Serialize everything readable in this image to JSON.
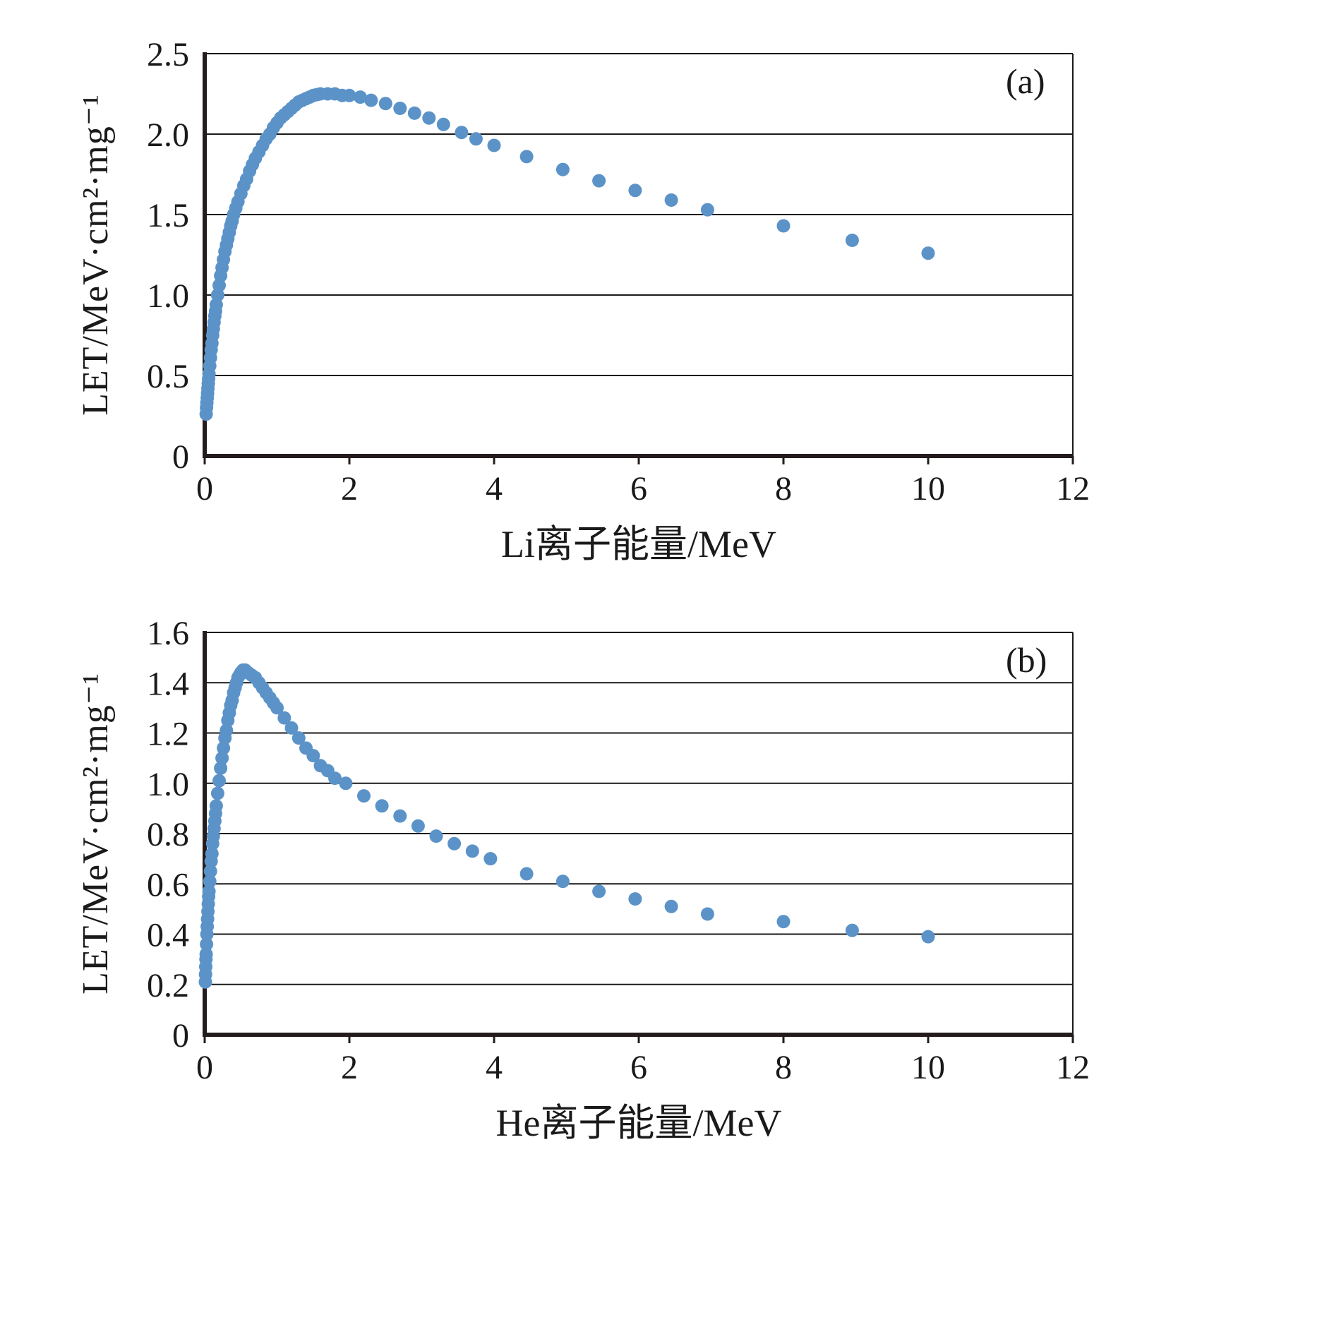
{
  "chart_data": [
    {
      "type": "scatter",
      "panel_label": "(a)",
      "xlabel": "Li离子能量/MeV",
      "ylabel": "LET/MeV·cm²·mg⁻¹",
      "xlim": [
        0,
        12
      ],
      "ylim": [
        0,
        2.5
      ],
      "xticks": [
        0,
        2,
        4,
        6,
        8,
        10,
        12
      ],
      "xtick_labels": [
        "0",
        "2",
        "4",
        "6",
        "8",
        "10",
        "12"
      ],
      "yticks": [
        0,
        0.5,
        1.0,
        1.5,
        2.0,
        2.5
      ],
      "ytick_labels": [
        "0",
        "0.5",
        "1.0",
        "1.5",
        "2.0",
        "2.5"
      ],
      "grid": "horizontal",
      "legend": "none",
      "point_color": "#5b93c8",
      "points": [
        [
          0.02,
          0.26
        ],
        [
          0.025,
          0.3
        ],
        [
          0.03,
          0.33
        ],
        [
          0.035,
          0.36
        ],
        [
          0.04,
          0.39
        ],
        [
          0.045,
          0.42
        ],
        [
          0.05,
          0.45
        ],
        [
          0.055,
          0.48
        ],
        [
          0.06,
          0.51
        ],
        [
          0.07,
          0.56
        ],
        [
          0.08,
          0.61
        ],
        [
          0.09,
          0.66
        ],
        [
          0.1,
          0.7
        ],
        [
          0.11,
          0.75
        ],
        [
          0.12,
          0.79
        ],
        [
          0.13,
          0.83
        ],
        [
          0.14,
          0.87
        ],
        [
          0.15,
          0.9
        ],
        [
          0.16,
          0.94
        ],
        [
          0.18,
          1.0
        ],
        [
          0.2,
          1.06
        ],
        [
          0.22,
          1.12
        ],
        [
          0.24,
          1.17
        ],
        [
          0.26,
          1.22
        ],
        [
          0.28,
          1.27
        ],
        [
          0.3,
          1.31
        ],
        [
          0.32,
          1.35
        ],
        [
          0.34,
          1.39
        ],
        [
          0.36,
          1.43
        ],
        [
          0.38,
          1.46
        ],
        [
          0.4,
          1.5
        ],
        [
          0.43,
          1.54
        ],
        [
          0.46,
          1.58
        ],
        [
          0.5,
          1.63
        ],
        [
          0.54,
          1.68
        ],
        [
          0.58,
          1.72
        ],
        [
          0.62,
          1.77
        ],
        [
          0.66,
          1.81
        ],
        [
          0.7,
          1.85
        ],
        [
          0.75,
          1.89
        ],
        [
          0.8,
          1.93
        ],
        [
          0.85,
          1.97
        ],
        [
          0.9,
          2.0
        ],
        [
          0.95,
          2.04
        ],
        [
          1.0,
          2.07
        ],
        [
          1.05,
          2.1
        ],
        [
          1.1,
          2.12
        ],
        [
          1.15,
          2.14
        ],
        [
          1.2,
          2.16
        ],
        [
          1.25,
          2.18
        ],
        [
          1.3,
          2.2
        ],
        [
          1.35,
          2.21
        ],
        [
          1.4,
          2.22
        ],
        [
          1.45,
          2.23
        ],
        [
          1.5,
          2.24
        ],
        [
          1.55,
          2.245
        ],
        [
          1.6,
          2.25
        ],
        [
          1.7,
          2.25
        ],
        [
          1.8,
          2.25
        ],
        [
          1.9,
          2.24
        ],
        [
          2.0,
          2.24
        ],
        [
          2.15,
          2.23
        ],
        [
          2.3,
          2.21
        ],
        [
          2.5,
          2.19
        ],
        [
          2.7,
          2.16
        ],
        [
          2.9,
          2.13
        ],
        [
          3.1,
          2.1
        ],
        [
          3.3,
          2.06
        ],
        [
          3.55,
          2.01
        ],
        [
          3.75,
          1.97
        ],
        [
          4.0,
          1.93
        ],
        [
          4.45,
          1.86
        ],
        [
          4.95,
          1.78
        ],
        [
          5.45,
          1.71
        ],
        [
          5.95,
          1.65
        ],
        [
          6.45,
          1.59
        ],
        [
          6.95,
          1.53
        ],
        [
          8.0,
          1.43
        ],
        [
          8.95,
          1.34
        ],
        [
          10.0,
          1.26
        ]
      ]
    },
    {
      "type": "scatter",
      "panel_label": "(b)",
      "xlabel": "He离子能量/MeV",
      "ylabel": "LET/MeV·cm²·mg⁻¹",
      "xlim": [
        0,
        12
      ],
      "ylim": [
        0,
        1.6
      ],
      "xticks": [
        0,
        2,
        4,
        6,
        8,
        10,
        12
      ],
      "xtick_labels": [
        "0",
        "2",
        "4",
        "6",
        "8",
        "10",
        "12"
      ],
      "yticks": [
        0,
        0.2,
        0.4,
        0.6,
        0.8,
        1.0,
        1.2,
        1.4,
        1.6
      ],
      "ytick_labels": [
        "0",
        "0.2",
        "0.4",
        "0.6",
        "0.8",
        "1.0",
        "1.2",
        "1.4",
        "1.6"
      ],
      "grid": "horizontal",
      "legend": "none",
      "point_color": "#5b93c8",
      "points": [
        [
          0.01,
          0.21
        ],
        [
          0.012,
          0.24
        ],
        [
          0.015,
          0.27
        ],
        [
          0.018,
          0.3
        ],
        [
          0.02,
          0.32
        ],
        [
          0.025,
          0.36
        ],
        [
          0.03,
          0.4
        ],
        [
          0.035,
          0.43
        ],
        [
          0.04,
          0.46
        ],
        [
          0.045,
          0.49
        ],
        [
          0.05,
          0.52
        ],
        [
          0.055,
          0.55
        ],
        [
          0.06,
          0.57
        ],
        [
          0.07,
          0.61
        ],
        [
          0.08,
          0.65
        ],
        [
          0.09,
          0.69
        ],
        [
          0.1,
          0.72
        ],
        [
          0.11,
          0.76
        ],
        [
          0.12,
          0.79
        ],
        [
          0.13,
          0.82
        ],
        [
          0.14,
          0.85
        ],
        [
          0.15,
          0.88
        ],
        [
          0.16,
          0.91
        ],
        [
          0.18,
          0.96
        ],
        [
          0.2,
          1.01
        ],
        [
          0.22,
          1.06
        ],
        [
          0.24,
          1.1
        ],
        [
          0.26,
          1.14
        ],
        [
          0.28,
          1.18
        ],
        [
          0.3,
          1.21
        ],
        [
          0.32,
          1.25
        ],
        [
          0.34,
          1.28
        ],
        [
          0.36,
          1.31
        ],
        [
          0.38,
          1.33
        ],
        [
          0.4,
          1.36
        ],
        [
          0.42,
          1.38
        ],
        [
          0.44,
          1.4
        ],
        [
          0.46,
          1.42
        ],
        [
          0.48,
          1.43
        ],
        [
          0.5,
          1.44
        ],
        [
          0.53,
          1.45
        ],
        [
          0.56,
          1.45
        ],
        [
          0.6,
          1.44
        ],
        [
          0.65,
          1.43
        ],
        [
          0.7,
          1.42
        ],
        [
          0.75,
          1.4
        ],
        [
          0.8,
          1.38
        ],
        [
          0.85,
          1.36
        ],
        [
          0.9,
          1.34
        ],
        [
          0.95,
          1.32
        ],
        [
          1.0,
          1.3
        ],
        [
          1.1,
          1.26
        ],
        [
          1.2,
          1.22
        ],
        [
          1.3,
          1.18
        ],
        [
          1.4,
          1.14
        ],
        [
          1.5,
          1.11
        ],
        [
          1.6,
          1.07
        ],
        [
          1.7,
          1.05
        ],
        [
          1.8,
          1.02
        ],
        [
          1.95,
          1.0
        ],
        [
          2.2,
          0.95
        ],
        [
          2.45,
          0.91
        ],
        [
          2.7,
          0.87
        ],
        [
          2.95,
          0.83
        ],
        [
          3.2,
          0.79
        ],
        [
          3.45,
          0.76
        ],
        [
          3.7,
          0.73
        ],
        [
          3.95,
          0.7
        ],
        [
          4.45,
          0.64
        ],
        [
          4.95,
          0.61
        ],
        [
          5.45,
          0.57
        ],
        [
          5.95,
          0.54
        ],
        [
          6.45,
          0.51
        ],
        [
          6.95,
          0.48
        ],
        [
          8.0,
          0.45
        ],
        [
          8.95,
          0.415
        ],
        [
          10.0,
          0.39
        ]
      ]
    }
  ],
  "style": {
    "grid_color": "#1a1a1a",
    "axis_color": "#241c1c"
  }
}
